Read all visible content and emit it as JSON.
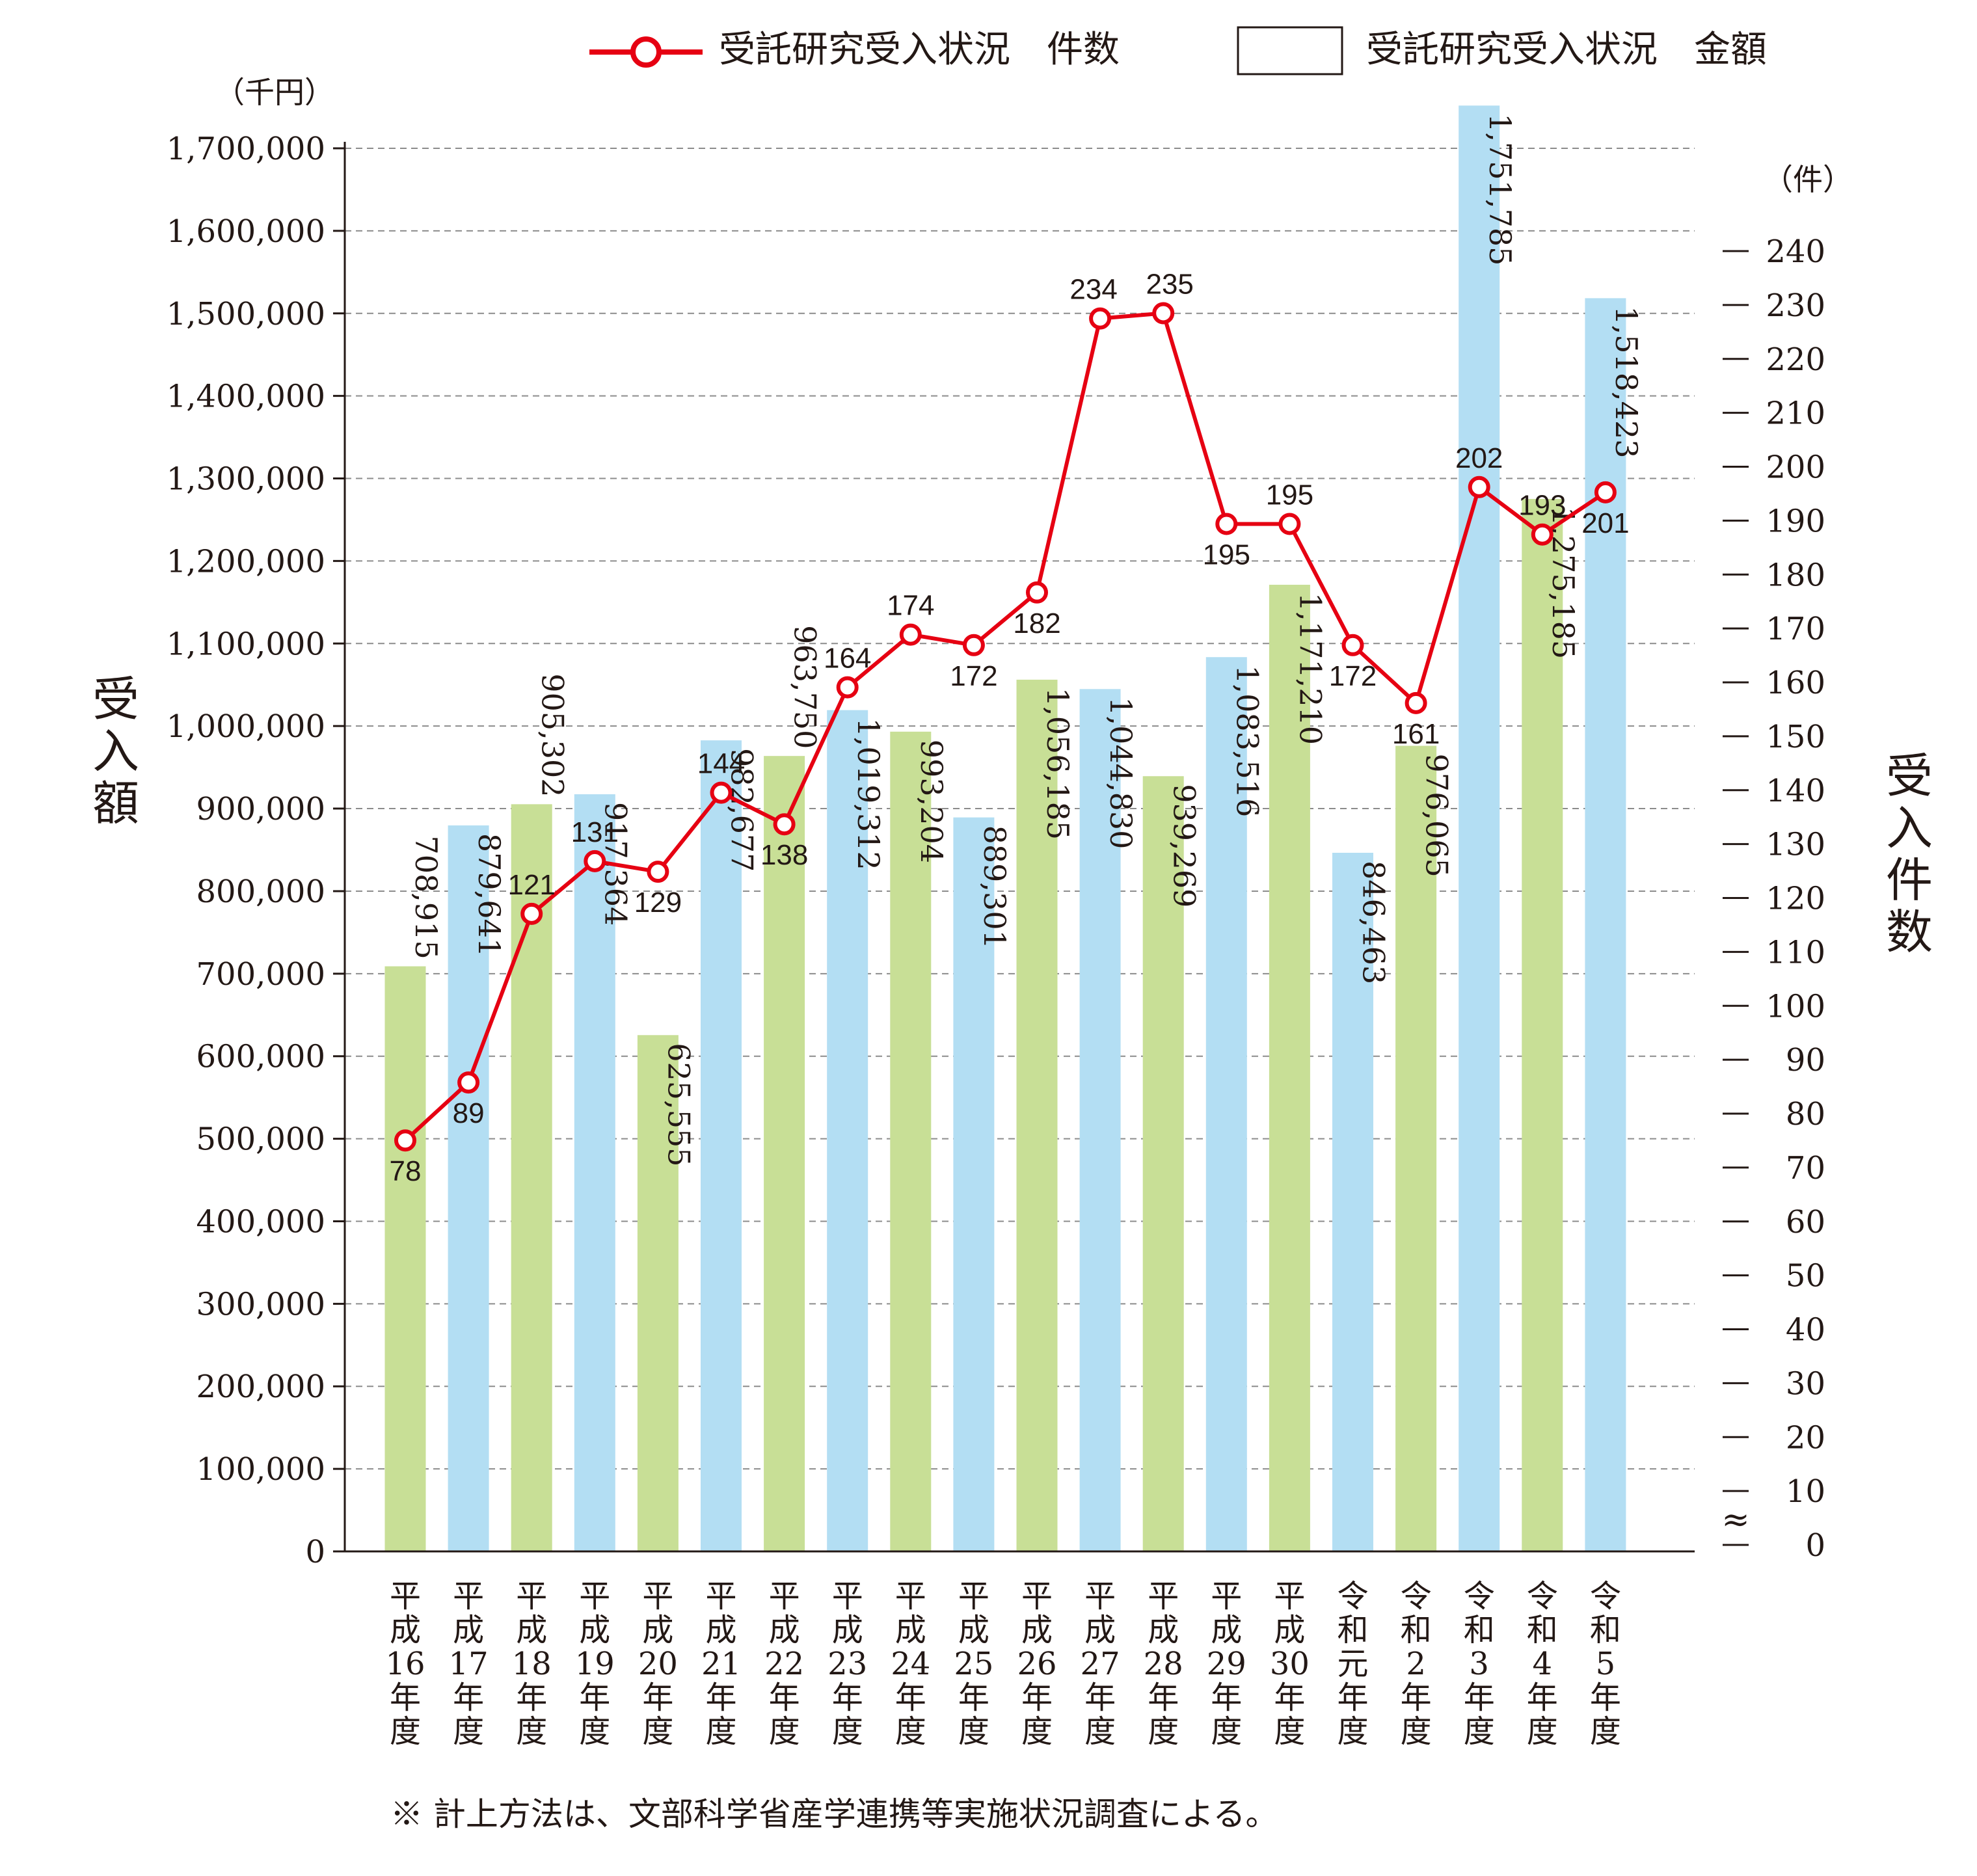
{
  "chart_data": {
    "type": "bar",
    "legend": {
      "position": "top-right",
      "line_label": "受託研究受入状況　件数",
      "bar_label": "受託研究受入状況　金額"
    },
    "y_left": {
      "unit": "（千円）",
      "title": "受入額",
      "range": [
        0,
        1700000
      ],
      "ticks": [
        {
          "value": 0,
          "label": "0"
        },
        {
          "value": 100000,
          "label": "100,000"
        },
        {
          "value": 200000,
          "label": "200,000"
        },
        {
          "value": 300000,
          "label": "300,000"
        },
        {
          "value": 400000,
          "label": "400,000"
        },
        {
          "value": 500000,
          "label": "500,000"
        },
        {
          "value": 600000,
          "label": "600,000"
        },
        {
          "value": 700000,
          "label": "700,000"
        },
        {
          "value": 800000,
          "label": "800,000"
        },
        {
          "value": 900000,
          "label": "900,000"
        },
        {
          "value": 1000000,
          "label": "1,000,000"
        },
        {
          "value": 1100000,
          "label": "1,100,000"
        },
        {
          "value": 1200000,
          "label": "1,200,000"
        },
        {
          "value": 1300000,
          "label": "1,300,000"
        },
        {
          "value": 1400000,
          "label": "1,400,000"
        },
        {
          "value": 1500000,
          "label": "1,500,000"
        },
        {
          "value": 1600000,
          "label": "1,600,000"
        },
        {
          "value": 1700000,
          "label": "1,700,000"
        }
      ]
    },
    "y_right": {
      "unit": "（件）",
      "title": "受入件数",
      "range": [
        0,
        240
      ],
      "break_symbol": "≈",
      "ticks": [
        {
          "value": 0,
          "label": "0"
        },
        {
          "value": 10,
          "label": "10"
        },
        {
          "value": 20,
          "label": "20"
        },
        {
          "value": 30,
          "label": "30"
        },
        {
          "value": 40,
          "label": "40"
        },
        {
          "value": 50,
          "label": "50"
        },
        {
          "value": 60,
          "label": "60"
        },
        {
          "value": 70,
          "label": "70"
        },
        {
          "value": 80,
          "label": "80"
        },
        {
          "value": 90,
          "label": "90"
        },
        {
          "value": 100,
          "label": "100"
        },
        {
          "value": 110,
          "label": "110"
        },
        {
          "value": 120,
          "label": "120"
        },
        {
          "value": 130,
          "label": "130"
        },
        {
          "value": 140,
          "label": "140"
        },
        {
          "value": 150,
          "label": "150"
        },
        {
          "value": 160,
          "label": "160"
        },
        {
          "value": 170,
          "label": "170"
        },
        {
          "value": 180,
          "label": "180"
        },
        {
          "value": 190,
          "label": "190"
        },
        {
          "value": 200,
          "label": "200"
        },
        {
          "value": 210,
          "label": "210"
        },
        {
          "value": 220,
          "label": "220"
        },
        {
          "value": 230,
          "label": "230"
        },
        {
          "value": 240,
          "label": "240"
        }
      ]
    },
    "grid": true,
    "categories": [
      "平成16年度",
      "平成17年度",
      "平成18年度",
      "平成19年度",
      "平成20年度",
      "平成21年度",
      "平成22年度",
      "平成23年度",
      "平成24年度",
      "平成25年度",
      "平成26年度",
      "平成27年度",
      "平成28年度",
      "平成29年度",
      "平成30年度",
      "令和元年度",
      "令和2年度",
      "令和3年度",
      "令和4年度",
      "令和5年度"
    ],
    "category_labels": [
      [
        "平",
        "成",
        "16",
        "年",
        "度"
      ],
      [
        "平",
        "成",
        "17",
        "年",
        "度"
      ],
      [
        "平",
        "成",
        "18",
        "年",
        "度"
      ],
      [
        "平",
        "成",
        "19",
        "年",
        "度"
      ],
      [
        "平",
        "成",
        "20",
        "年",
        "度"
      ],
      [
        "平",
        "成",
        "21",
        "年",
        "度"
      ],
      [
        "平",
        "成",
        "22",
        "年",
        "度"
      ],
      [
        "平",
        "成",
        "23",
        "年",
        "度"
      ],
      [
        "平",
        "成",
        "24",
        "年",
        "度"
      ],
      [
        "平",
        "成",
        "25",
        "年",
        "度"
      ],
      [
        "平",
        "成",
        "26",
        "年",
        "度"
      ],
      [
        "平",
        "成",
        "27",
        "年",
        "度"
      ],
      [
        "平",
        "成",
        "28",
        "年",
        "度"
      ],
      [
        "平",
        "成",
        "29",
        "年",
        "度"
      ],
      [
        "平",
        "成",
        "30",
        "年",
        "度"
      ],
      [
        "令",
        "和",
        "元",
        "年",
        "度"
      ],
      [
        "令",
        "和",
        "2",
        "年",
        "度"
      ],
      [
        "令",
        "和",
        "3",
        "年",
        "度"
      ],
      [
        "令",
        "和",
        "4",
        "年",
        "度"
      ],
      [
        "令",
        "和",
        "5",
        "年",
        "度"
      ]
    ],
    "series": [
      {
        "name": "受託研究受入状況　金額",
        "type": "bar",
        "axis": "left",
        "values": [
          708915,
          879641,
          905302,
          917364,
          625555,
          982677,
          963750,
          1019312,
          993204,
          889301,
          1056185,
          1044830,
          939269,
          1083516,
          1171210,
          846463,
          976065,
          1751785,
          1275185,
          1518423
        ],
        "labels": [
          "708,915",
          "879,641",
          "905,302",
          "917,364",
          "625,555",
          "982,677",
          "963,750",
          "1,019,312",
          "993,204",
          "889,301",
          "1,056,185",
          "1,044,830",
          "939,269",
          "1,083,516",
          "1,171,210",
          "846,463",
          "976,065",
          "1,751,785",
          "1,275,185",
          "1,518,423"
        ],
        "colors": [
          "#c8df96",
          "#b3def3",
          "#c8df96",
          "#b3def3",
          "#c8df96",
          "#b3def3",
          "#c8df96",
          "#b3def3",
          "#c8df96",
          "#b3def3",
          "#c8df96",
          "#b3def3",
          "#c8df96",
          "#b3def3",
          "#c8df96",
          "#b3def3",
          "#c8df96",
          "#b3def3",
          "#c8df96",
          "#b3def3"
        ]
      },
      {
        "name": "受託研究受入状況　件数",
        "type": "line",
        "axis": "right",
        "color": "#e60012",
        "values": [
          78,
          89,
          121,
          131,
          129,
          144,
          138,
          164,
          174,
          172,
          182,
          234,
          235,
          195,
          195,
          172,
          161,
          202,
          193,
          201
        ]
      }
    ]
  },
  "footnote": "※ 計上方法は、文部科学省産学連携等実施状況調査による。"
}
